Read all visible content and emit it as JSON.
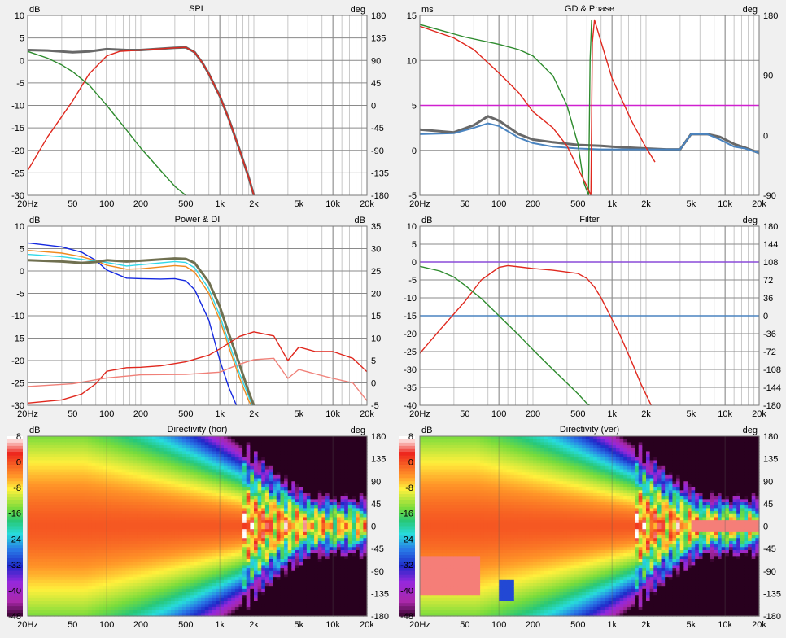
{
  "panels": [
    {
      "title": "SPL",
      "left_unit": "dB",
      "right_unit": "deg",
      "y_ticks": [
        "10",
        "5",
        "0",
        "-5",
        "-10",
        "-15",
        "-20",
        "-25",
        "-30"
      ],
      "r_ticks": [
        "180",
        "135",
        "90",
        "45",
        "0",
        "-45",
        "-90",
        "-135",
        "-180"
      ],
      "x_ticks": [
        "20Hz",
        "50",
        "100",
        "200",
        "500",
        "1k",
        "2k",
        "5k",
        "10k",
        "20k"
      ]
    },
    {
      "title": "GD & Phase",
      "left_unit": "ms",
      "right_unit": "deg",
      "y_ticks": [
        "15",
        "10",
        "5",
        "0",
        "-5"
      ],
      "r_ticks": [
        "180",
        "90",
        "0",
        "-90"
      ],
      "x_ticks": [
        "20Hz",
        "50",
        "100",
        "200",
        "500",
        "1k",
        "2k",
        "5k",
        "10k",
        "20k"
      ]
    },
    {
      "title": "Power & DI",
      "left_unit": "dB",
      "right_unit": "dB",
      "y_ticks": [
        "10",
        "5",
        "0",
        "-5",
        "-10",
        "-15",
        "-20",
        "-25",
        "-30"
      ],
      "r_ticks": [
        "35",
        "30",
        "25",
        "20",
        "15",
        "10",
        "5",
        "0",
        "-5"
      ],
      "x_ticks": [
        "20Hz",
        "50",
        "100",
        "200",
        "500",
        "1k",
        "2k",
        "5k",
        "10k",
        "20k"
      ]
    },
    {
      "title": "Filter",
      "left_unit": "dB",
      "right_unit": "deg",
      "y_ticks": [
        "10",
        "5",
        "0",
        "-5",
        "-10",
        "-15",
        "-20",
        "-25",
        "-30",
        "-35",
        "-40"
      ],
      "r_ticks": [
        "180",
        "144",
        "108",
        "72",
        "36",
        "0",
        "-36",
        "-72",
        "-108",
        "-144",
        "-180"
      ],
      "x_ticks": [
        "20Hz",
        "50",
        "100",
        "200",
        "500",
        "1k",
        "2k",
        "5k",
        "10k",
        "20k"
      ]
    },
    {
      "title": "Directivity (hor)",
      "left_unit": "dB",
      "right_unit": "deg",
      "y_ticks": [
        "8",
        "0",
        "-8",
        "-16",
        "-24",
        "-32",
        "-40",
        "-48"
      ],
      "r_ticks": [
        "180",
        "135",
        "90",
        "45",
        "0",
        "-45",
        "-90",
        "-135",
        "-180"
      ],
      "x_ticks": [
        "20Hz",
        "50",
        "100",
        "200",
        "500",
        "1k",
        "2k",
        "5k",
        "10k",
        "20k"
      ]
    },
    {
      "title": "Directivity (ver)",
      "left_unit": "dB",
      "right_unit": "deg",
      "y_ticks": [
        "8",
        "0",
        "-8",
        "-16",
        "-24",
        "-32",
        "-40",
        "-48"
      ],
      "r_ticks": [
        "180",
        "135",
        "90",
        "45",
        "0",
        "-45",
        "-90",
        "-135",
        "-180"
      ],
      "x_ticks": [
        "20Hz",
        "50",
        "100",
        "200",
        "500",
        "1k",
        "2k",
        "5k",
        "10k",
        "20k"
      ]
    }
  ],
  "colors": {
    "bg": "#f0f0f0",
    "plot": "#ffffff",
    "grid": "#c8c8c8",
    "grid_major": "#8a8a8a",
    "gray": "#686868",
    "red": "#e0281e",
    "green": "#2e8b2e",
    "blue": "#4a84c0",
    "magenta": "#d020d0",
    "orange": "#f08a1e",
    "cyan": "#30d8e8",
    "navy": "#1428e0",
    "salmon": "#f08078",
    "olive": "#707050",
    "purple": "#8a4ad8"
  },
  "chart_data": [
    {
      "type": "line",
      "title": "SPL",
      "ylabel": "dB",
      "y2label": "deg",
      "xscale": "log",
      "xlim": [
        20,
        20000
      ],
      "ylim": [
        -30,
        10
      ],
      "y2lim": [
        -180,
        180
      ],
      "grid": true,
      "series": [
        {
          "color": "#686868",
          "x": [
            20,
            30,
            50,
            70,
            100,
            150,
            200,
            300,
            400,
            500,
            600,
            700,
            800,
            1000,
            1200,
            1500,
            1800,
            2000
          ],
          "y": [
            2.3,
            2.2,
            1.8,
            2.0,
            2.5,
            2.3,
            2.3,
            2.6,
            2.8,
            2.9,
            1.8,
            -0.5,
            -3,
            -8,
            -13,
            -20,
            -26,
            -30
          ]
        },
        {
          "color": "#e0281e",
          "x": [
            20,
            30,
            50,
            70,
            100,
            130,
            200,
            300,
            400,
            500,
            600,
            700,
            800,
            1000,
            1200,
            1500,
            1800,
            2000
          ],
          "y": [
            -24.5,
            -17,
            -9,
            -3,
            1,
            2,
            2.3,
            2.6,
            2.8,
            2.9,
            1.8,
            -0.5,
            -3,
            -8,
            -13,
            -20,
            -26,
            -30
          ]
        },
        {
          "color": "#2e8b2e",
          "x": [
            20,
            30,
            40,
            50,
            70,
            100,
            150,
            200,
            300,
            400,
            500
          ],
          "y": [
            2,
            0.5,
            -1,
            -2.5,
            -5.5,
            -10,
            -15.5,
            -19.5,
            -24.5,
            -28,
            -30
          ]
        }
      ]
    },
    {
      "type": "line",
      "title": "GD & Phase",
      "ylabel": "ms",
      "y2label": "deg",
      "xscale": "log",
      "xlim": [
        20,
        20000
      ],
      "ylim": [
        -5,
        15
      ],
      "y2lim": [
        -180,
        180
      ],
      "grid": true,
      "series": [
        {
          "color": "#d020d0",
          "x": [
            20,
            20000
          ],
          "y": [
            5,
            5
          ]
        },
        {
          "color": "#686868",
          "x": [
            20,
            40,
            60,
            80,
            100,
            150,
            200,
            300,
            500,
            800,
            1000,
            2000,
            3000,
            4000,
            5000,
            7000,
            9000,
            12000,
            15000,
            20000
          ],
          "y": [
            2.3,
            2.0,
            2.8,
            3.8,
            3.3,
            1.8,
            1.2,
            0.9,
            0.6,
            0.5,
            0.4,
            0.2,
            0.1,
            0.1,
            1.8,
            1.8,
            1.5,
            0.7,
            0.3,
            -0.3
          ]
        },
        {
          "color": "#4a84c0",
          "x": [
            20,
            40,
            60,
            80,
            100,
            150,
            200,
            300,
            500,
            800,
            1000,
            2000,
            3000,
            4000,
            5000,
            7000,
            9000,
            12000,
            15000,
            20000
          ],
          "y": [
            1.8,
            1.9,
            2.5,
            3.0,
            2.7,
            1.4,
            0.8,
            0.4,
            0.2,
            0.1,
            0.1,
            0.1,
            0.1,
            0.1,
            1.8,
            1.8,
            1.2,
            0.4,
            0.2,
            -0.3
          ]
        },
        {
          "color": "#2e8b2e",
          "x": [
            20,
            50,
            100,
            150,
            200,
            300,
            400,
            500,
            560,
            620,
            640,
            660
          ],
          "y": [
            14,
            12.6,
            11.8,
            11.2,
            10.5,
            8.3,
            5.0,
            0.7,
            -3.5,
            -5,
            10,
            14.5
          ]
        },
        {
          "color": "#e0281e",
          "x": [
            20,
            40,
            60,
            100,
            150,
            200,
            300,
            400,
            500,
            600,
            650,
            670,
            700,
            1000,
            1500,
            2000,
            2400
          ],
          "y": [
            13.8,
            12.5,
            11.2,
            8.6,
            6.4,
            4.3,
            2.5,
            0.5,
            -2.0,
            -4.0,
            -5,
            12,
            14.5,
            8.0,
            3.2,
            0.3,
            -1.3
          ]
        }
      ]
    },
    {
      "type": "line",
      "title": "Power & DI",
      "ylabel": "dB",
      "y2label": "dB",
      "xscale": "log",
      "xlim": [
        20,
        20000
      ],
      "ylim": [
        -30,
        10
      ],
      "y2lim": [
        -5,
        35
      ],
      "grid": true,
      "series": [
        {
          "color": "#1428e0",
          "x": [
            20,
            40,
            60,
            80,
            100,
            150,
            200,
            300,
            400,
            500,
            600,
            800,
            1000,
            1200,
            1400,
            1600
          ],
          "y": [
            6.3,
            5.4,
            4.2,
            2.4,
            0.2,
            -1.6,
            -1.7,
            -1.8,
            -1.7,
            -2.2,
            -4.2,
            -11,
            -20,
            -26,
            -30,
            -31
          ]
        },
        {
          "color": "#f08a1e",
          "x": [
            20,
            40,
            60,
            80,
            100,
            150,
            200,
            300,
            400,
            500,
            600,
            800,
            1000,
            1200,
            1500,
            1800,
            2000
          ],
          "y": [
            4.6,
            4.0,
            3.2,
            2.3,
            1.3,
            0.4,
            0.5,
            0.9,
            1.2,
            1.0,
            -0.3,
            -5,
            -11,
            -17,
            -24,
            -29,
            -31
          ]
        },
        {
          "color": "#30d8e8",
          "x": [
            20,
            40,
            60,
            80,
            100,
            150,
            200,
            300,
            400,
            500,
            600,
            800,
            1000,
            1200,
            1500,
            1800,
            2000
          ],
          "y": [
            3.7,
            3.2,
            2.6,
            2.2,
            1.9,
            1.1,
            1.4,
            1.8,
            2.1,
            1.9,
            0.7,
            -4,
            -10,
            -16,
            -23,
            -28,
            -31
          ]
        },
        {
          "color": "#707050",
          "x": [
            20,
            40,
            60,
            80,
            100,
            150,
            200,
            300,
            400,
            500,
            600,
            800,
            1000,
            1200,
            1500,
            1800,
            2000,
            2200
          ],
          "y": [
            2.4,
            2.1,
            1.8,
            2.0,
            2.4,
            2.1,
            2.3,
            2.6,
            2.8,
            2.7,
            1.8,
            -2.5,
            -8,
            -14,
            -21,
            -27,
            -30,
            -31
          ]
        },
        {
          "color": "#e0281e",
          "x": [
            20,
            40,
            60,
            80,
            100,
            150,
            200,
            300,
            500,
            800,
            1000,
            1500,
            2000,
            3000,
            4000,
            5000,
            7000,
            10000,
            15000,
            20000
          ],
          "y": [
            -29.5,
            -28.8,
            -27.5,
            -25.2,
            -22.4,
            -21.6,
            -21.5,
            -21.2,
            -20.3,
            -18.8,
            -17.4,
            -14.6,
            -13.6,
            -14.5,
            -20,
            -17,
            -18,
            -18,
            -19.5,
            -22.5
          ]
        },
        {
          "color": "#f08078",
          "x": [
            20,
            50,
            100,
            200,
            500,
            1000,
            1500,
            2000,
            3000,
            4000,
            5000,
            7000,
            10000,
            15000,
            20000
          ],
          "y": [
            -25.8,
            -25.2,
            -23.9,
            -23.2,
            -23.1,
            -22.6,
            -20.8,
            -19.8,
            -19.5,
            -24,
            -22,
            -23,
            -24,
            -25,
            -29
          ]
        }
      ]
    },
    {
      "type": "line",
      "title": "Filter",
      "ylabel": "dB",
      "y2label": "deg",
      "xscale": "log",
      "xlim": [
        20,
        20000
      ],
      "ylim": [
        -40,
        10
      ],
      "y2lim": [
        -180,
        180
      ],
      "grid": true,
      "series": [
        {
          "color": "#8a4ad8",
          "x": [
            20,
            20000
          ],
          "y": [
            0,
            0
          ]
        },
        {
          "color": "#4a84c0",
          "x": [
            20,
            20000
          ],
          "y": [
            -15,
            -15
          ]
        },
        {
          "color": "#e0281e",
          "x": [
            20,
            30,
            50,
            70,
            100,
            120,
            200,
            300,
            500,
            600,
            700,
            800,
            1000,
            1200,
            1500,
            1800,
            2000,
            2300
          ],
          "y": [
            -25.5,
            -19,
            -11,
            -5,
            -1.5,
            -1,
            -1.8,
            -2.3,
            -3.2,
            -4.6,
            -7,
            -10,
            -16,
            -21,
            -28,
            -34,
            -37,
            -41
          ]
        },
        {
          "color": "#2e8b2e",
          "x": [
            20,
            30,
            40,
            50,
            70,
            100,
            150,
            200,
            300,
            400,
            500,
            600,
            700
          ],
          "y": [
            -1.2,
            -2.5,
            -4.2,
            -6.5,
            -10.2,
            -15,
            -20.4,
            -24.5,
            -30,
            -33.8,
            -36.8,
            -39.5,
            -41
          ]
        }
      ]
    },
    {
      "type": "heatmap",
      "title": "Directivity (hor)",
      "xscale": "log",
      "xlim": [
        20,
        20000
      ],
      "ylabel": "deg",
      "ylim": [
        -180,
        180
      ],
      "colorbar_label": "dB",
      "colorbar_range": [
        -48,
        8
      ]
    },
    {
      "type": "heatmap",
      "title": "Directivity (ver)",
      "xscale": "log",
      "xlim": [
        20,
        20000
      ],
      "ylabel": "deg",
      "ylim": [
        -180,
        180
      ],
      "colorbar_label": "dB",
      "colorbar_range": [
        -48,
        8
      ]
    }
  ]
}
